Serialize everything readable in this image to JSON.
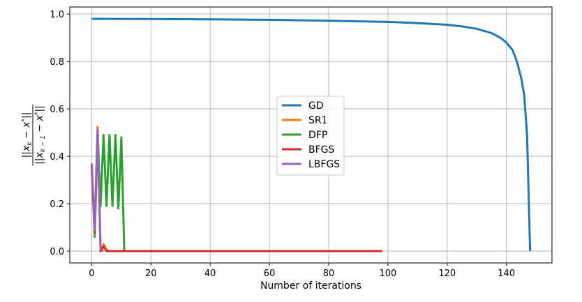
{
  "chart_data": {
    "type": "line",
    "title": "",
    "xlabel": "Number of iterations",
    "ylabel": "||x_k − x*|| / ||x_{k−1} − x*||",
    "xlim": [
      -7.4,
      155.4
    ],
    "ylim": [
      -0.05,
      1.03
    ],
    "xticks": [
      0,
      20,
      40,
      60,
      80,
      100,
      120,
      140
    ],
    "yticks": [
      0.0,
      0.2,
      0.4,
      0.6,
      0.8,
      1.0
    ],
    "ytick_labels": [
      "0.0",
      "0.2",
      "0.4",
      "0.6",
      "0.8",
      "1.0"
    ],
    "grid": true,
    "legend_position": "center",
    "series": [
      {
        "name": "GD",
        "color": "#1f77b4",
        "x": [
          0,
          20,
          40,
          60,
          80,
          100,
          110,
          120,
          125,
          130,
          135,
          138,
          140,
          142,
          143,
          144,
          145,
          146,
          147,
          148
        ],
        "y": [
          0.98,
          0.979,
          0.978,
          0.976,
          0.972,
          0.967,
          0.962,
          0.955,
          0.948,
          0.938,
          0.92,
          0.9,
          0.88,
          0.85,
          0.82,
          0.78,
          0.73,
          0.66,
          0.49,
          0.0
        ]
      },
      {
        "name": "SR1",
        "color": "#ff7f0e",
        "x": [
          0,
          1,
          2,
          3,
          4,
          5,
          6,
          7,
          8
        ],
        "y": [
          0.34,
          0.12,
          0.525,
          0.0,
          0.03,
          0.005,
          0.0,
          0.0,
          0.0
        ]
      },
      {
        "name": "DFP",
        "color": "#2ca02c",
        "x": [
          0,
          1,
          2,
          3,
          4,
          5,
          6,
          7,
          8,
          9,
          10,
          11
        ],
        "y": [
          0.36,
          0.06,
          0.5,
          0.19,
          0.49,
          0.19,
          0.49,
          0.19,
          0.49,
          0.18,
          0.48,
          0.0
        ]
      },
      {
        "name": "BFGS",
        "color": "#d62728",
        "x": [
          0,
          1,
          2,
          3,
          4,
          5,
          10,
          20,
          30,
          40,
          50,
          60,
          70,
          80,
          90,
          98
        ],
        "y": [
          0.36,
          0.08,
          0.5,
          0.0,
          0.02,
          0.0,
          0.0,
          0.0,
          0.0,
          0.0,
          0.0,
          0.0,
          0.0,
          0.0,
          0.0,
          0.0
        ]
      },
      {
        "name": "LBFGS",
        "color": "#9467bd",
        "x": [
          0,
          1,
          2,
          3,
          4
        ],
        "y": [
          0.37,
          0.09,
          0.51,
          0.01,
          0.0
        ]
      }
    ]
  }
}
